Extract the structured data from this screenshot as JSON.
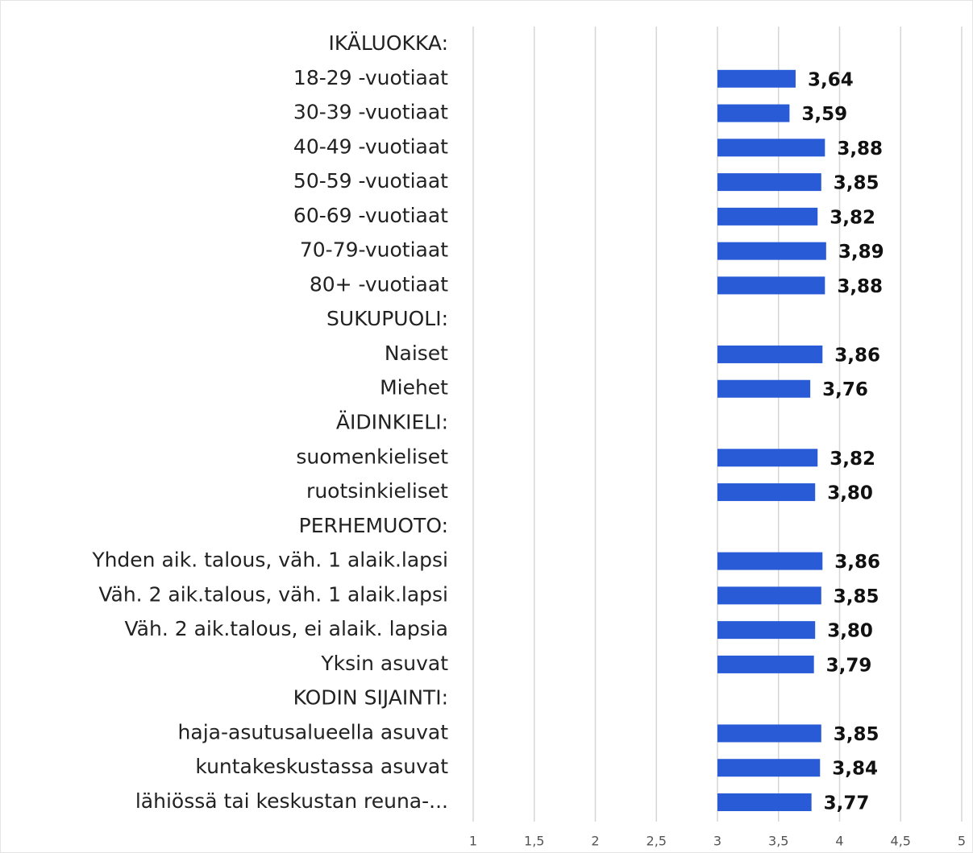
{
  "chart_data": {
    "type": "bar",
    "orientation": "horizontal",
    "color": "#2a5bd7",
    "bar_base": 3,
    "categories": [
      "IKÄLUOKKA:",
      "18-29 -vuotiaat",
      "30-39 -vuotiaat",
      "40-49 -vuotiaat",
      "50-59 -vuotiaat",
      "60-69 -vuotiaat",
      "70-79-vuotiaat",
      "80+ -vuotiaat",
      "SUKUPUOLI:",
      "Naiset",
      "Miehet",
      "ÄIDINKIELI:",
      "suomenkieliset",
      "ruotsinkieliset",
      "PERHEMUOTO:",
      "Yhden aik. talous, väh. 1 alaik.lapsi",
      "Väh. 2 aik.talous, väh. 1 alaik.lapsi",
      "Väh. 2 aik.talous, ei alaik. lapsia",
      "Yksin asuvat",
      "KODIN SIJAINTI:",
      "haja-asutusalueella asuvat",
      "kuntakeskustassa asuvat",
      "lähiössä tai keskustan reuna-..."
    ],
    "values": [
      null,
      3.64,
      3.59,
      3.88,
      3.85,
      3.82,
      3.89,
      3.88,
      null,
      3.86,
      3.76,
      null,
      3.82,
      3.8,
      null,
      3.86,
      3.85,
      3.8,
      3.79,
      null,
      3.85,
      3.84,
      3.77
    ],
    "value_labels": [
      null,
      "3,64",
      "3,59",
      "3,88",
      "3,85",
      "3,82",
      "3,89",
      "3,88",
      null,
      "3,86",
      "3,76",
      null,
      "3,82",
      "3,80",
      null,
      "3,86",
      "3,85",
      "3,80",
      "3,79",
      null,
      "3,85",
      "3,84",
      "3,77"
    ],
    "xlim": [
      1,
      5
    ],
    "xticks": [
      1,
      {
        "value": 1.5,
        "label": "1,5"
      },
      2,
      {
        "value": 2.5,
        "label": "2,5"
      },
      3,
      {
        "value": 3.5,
        "label": "3,5"
      },
      4,
      {
        "value": 4.5,
        "label": "4,5"
      },
      5
    ],
    "grid": true
  }
}
